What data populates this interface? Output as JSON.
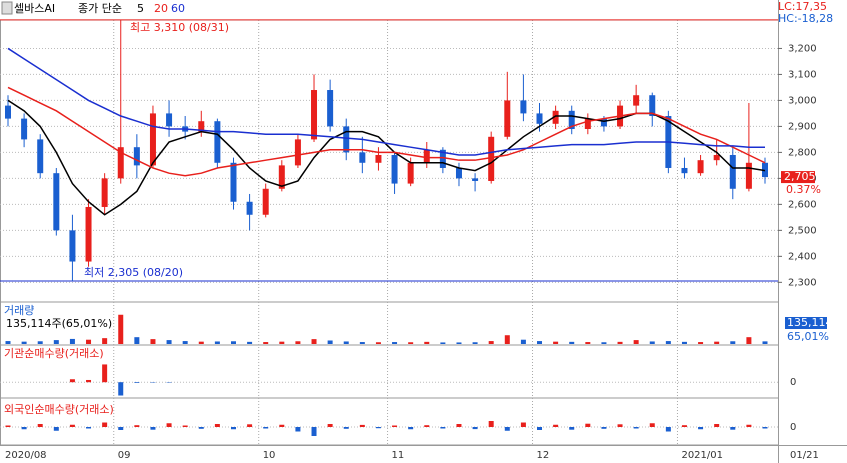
{
  "chart_data": {
    "type": "candlestick",
    "title": "셀바스AI",
    "ma_legend": {
      "label": "종가 단순",
      "periods": [
        "5",
        "20",
        "60"
      ]
    },
    "lc_label": "LC:17,35",
    "hc_label": "HC:-18,28",
    "high_annotation": {
      "value": 3310,
      "label": "최고 3,310 (08/31)"
    },
    "low_annotation": {
      "value": 2305,
      "label": "최저 2,305 (08/20)"
    },
    "last_label": {
      "value": 2705,
      "label": "2,705"
    },
    "change_label": "0.37%",
    "x_labels": [
      {
        "index": 0,
        "label": "2020/08"
      },
      {
        "index": 7,
        "label": "09"
      },
      {
        "index": 16,
        "label": "10"
      },
      {
        "index": 24,
        "label": "11"
      },
      {
        "index": 33,
        "label": "12"
      },
      {
        "index": 42,
        "label": "2021/01"
      }
    ],
    "last_date_label": "01/21",
    "ylim": [
      2232,
      3371
    ],
    "yticks": [
      {
        "value": 2300,
        "label": "2,300"
      },
      {
        "value": 2400,
        "label": "2,400"
      },
      {
        "value": 2500,
        "label": "2,500"
      },
      {
        "value": 2600,
        "label": "2,600"
      },
      {
        "value": 2700,
        "label": "2,700"
      },
      {
        "value": 2800,
        "label": "2,800"
      },
      {
        "value": 2900,
        "label": "2,900"
      },
      {
        "value": 3000,
        "label": "3,000"
      },
      {
        "value": 3100,
        "label": "3,100"
      },
      {
        "value": 3200,
        "label": "3,200"
      }
    ],
    "up_color": "#e8201c",
    "down_color": "#1a5fd0",
    "open": [
      2980,
      2930,
      2850,
      2720,
      2500,
      2380,
      2590,
      2700,
      2820,
      2750,
      2950,
      2900,
      2880,
      2920,
      2760,
      2610,
      2560,
      2660,
      2750,
      2850,
      3040,
      2900,
      2800,
      2760,
      2790,
      2680,
      2760,
      2810,
      2740,
      2700,
      2690,
      2860,
      3000,
      2950,
      2910,
      2960,
      2890,
      2930,
      2900,
      2980,
      3020,
      2940,
      2740,
      2720,
      2770,
      2790,
      2660,
      2760
    ],
    "high": [
      3020,
      2950,
      2870,
      2740,
      2560,
      2620,
      2720,
      3310,
      2870,
      2980,
      3000,
      2940,
      2960,
      2930,
      2780,
      2640,
      2680,
      2770,
      2870,
      3100,
      3080,
      2930,
      2860,
      2820,
      2800,
      2780,
      2840,
      2820,
      2760,
      2720,
      2880,
      3110,
      3100,
      2990,
      2980,
      2980,
      2950,
      2940,
      3000,
      3060,
      3030,
      2960,
      2780,
      2790,
      2850,
      2820,
      2990,
      2780
    ],
    "low": [
      2900,
      2820,
      2700,
      2480,
      2305,
      2360,
      2560,
      2680,
      2700,
      2740,
      2860,
      2850,
      2860,
      2740,
      2580,
      2500,
      2550,
      2650,
      2740,
      2840,
      2880,
      2770,
      2720,
      2730,
      2640,
      2670,
      2740,
      2720,
      2670,
      2650,
      2680,
      2850,
      2920,
      2880,
      2890,
      2870,
      2870,
      2880,
      2890,
      2950,
      2900,
      2720,
      2700,
      2710,
      2750,
      2620,
      2650,
      2680
    ],
    "close": [
      2930,
      2850,
      2720,
      2500,
      2380,
      2590,
      2700,
      2820,
      2750,
      2950,
      2900,
      2880,
      2920,
      2760,
      2610,
      2560,
      2660,
      2750,
      2850,
      3040,
      2900,
      2800,
      2760,
      2790,
      2680,
      2760,
      2810,
      2740,
      2700,
      2690,
      2860,
      3000,
      2950,
      2910,
      2960,
      2890,
      2930,
      2900,
      2980,
      3020,
      2940,
      2740,
      2720,
      2770,
      2790,
      2660,
      2760,
      2705
    ],
    "series": [
      {
        "name": "5",
        "color": "#000000",
        "values": [
          3000,
          2960,
          2900,
          2800,
          2680,
          2610,
          2560,
          2600,
          2650,
          2760,
          2840,
          2860,
          2880,
          2870,
          2810,
          2740,
          2690,
          2670,
          2690,
          2780,
          2850,
          2880,
          2880,
          2860,
          2800,
          2760,
          2760,
          2760,
          2740,
          2730,
          2760,
          2810,
          2860,
          2900,
          2940,
          2940,
          2930,
          2920,
          2930,
          2950,
          2950,
          2920,
          2880,
          2840,
          2800,
          2740,
          2740,
          2730
        ]
      },
      {
        "name": "20",
        "color": "#e8201c",
        "values": [
          3050,
          3020,
          2990,
          2960,
          2920,
          2880,
          2840,
          2800,
          2770,
          2740,
          2720,
          2710,
          2720,
          2740,
          2750,
          2760,
          2770,
          2780,
          2790,
          2800,
          2810,
          2810,
          2810,
          2800,
          2800,
          2790,
          2780,
          2780,
          2770,
          2770,
          2780,
          2790,
          2810,
          2840,
          2870,
          2900,
          2920,
          2930,
          2940,
          2950,
          2950,
          2930,
          2900,
          2870,
          2850,
          2820,
          2790,
          2760
        ]
      },
      {
        "name": "60",
        "color": "#1a2fd0",
        "values": [
          3200,
          3160,
          3120,
          3080,
          3040,
          3000,
          2970,
          2940,
          2920,
          2900,
          2890,
          2890,
          2885,
          2880,
          2880,
          2875,
          2870,
          2870,
          2870,
          2865,
          2860,
          2855,
          2850,
          2840,
          2830,
          2820,
          2810,
          2800,
          2790,
          2790,
          2800,
          2810,
          2815,
          2820,
          2825,
          2830,
          2830,
          2830,
          2835,
          2840,
          2840,
          2840,
          2835,
          2830,
          2825,
          2825,
          2820,
          2820
        ]
      }
    ],
    "volume": {
      "title": "거래량",
      "info": "135,114주(65,01%)",
      "last_label": "135,114",
      "pct_label": "65,01%",
      "ylim": [
        0,
        2000000
      ],
      "values": [
        150000,
        120000,
        140000,
        200000,
        260000,
        220000,
        300000,
        1500000,
        350000,
        250000,
        200000,
        150000,
        120000,
        130000,
        140000,
        110000,
        100000,
        120000,
        140000,
        250000,
        180000,
        130000,
        100000,
        90000,
        100000,
        90000,
        110000,
        80000,
        80000,
        90000,
        150000,
        450000,
        220000,
        150000,
        120000,
        110000,
        100000,
        90000,
        110000,
        200000,
        130000,
        150000,
        110000,
        100000,
        120000,
        140000,
        350000,
        135114
      ]
    },
    "institution": {
      "title": "기관순매수량(거래소)",
      "ylim": [
        -100000,
        150000
      ],
      "yticks": [
        0
      ],
      "values": [
        0,
        0,
        0,
        0,
        20000,
        15000,
        120000,
        -90000,
        -5000,
        -3000,
        -3000,
        0,
        0,
        0,
        0,
        0,
        0,
        0,
        0,
        0,
        0,
        0,
        0,
        0,
        0,
        0,
        0,
        0,
        0,
        0,
        0,
        0,
        0,
        0,
        0,
        0,
        0,
        0,
        0,
        0,
        0,
        0,
        0,
        0,
        0,
        0,
        0,
        0
      ]
    },
    "foreign": {
      "title": "외국인순매수량(거래소)",
      "ylim": [
        -100000,
        100000
      ],
      "yticks": [
        0
      ],
      "values": [
        10000,
        -15000,
        20000,
        -25000,
        15000,
        -10000,
        30000,
        -20000,
        12000,
        -18000,
        25000,
        10000,
        -12000,
        20000,
        -15000,
        18000,
        -10000,
        15000,
        -30000,
        -60000,
        20000,
        -12000,
        14000,
        -8000,
        10000,
        -15000,
        12000,
        -10000,
        20000,
        -14000,
        40000,
        -25000,
        30000,
        -20000,
        15000,
        -18000,
        22000,
        -12000,
        18000,
        -10000,
        25000,
        -30000,
        12000,
        -15000,
        20000,
        -18000,
        15000,
        -10000
      ]
    }
  }
}
